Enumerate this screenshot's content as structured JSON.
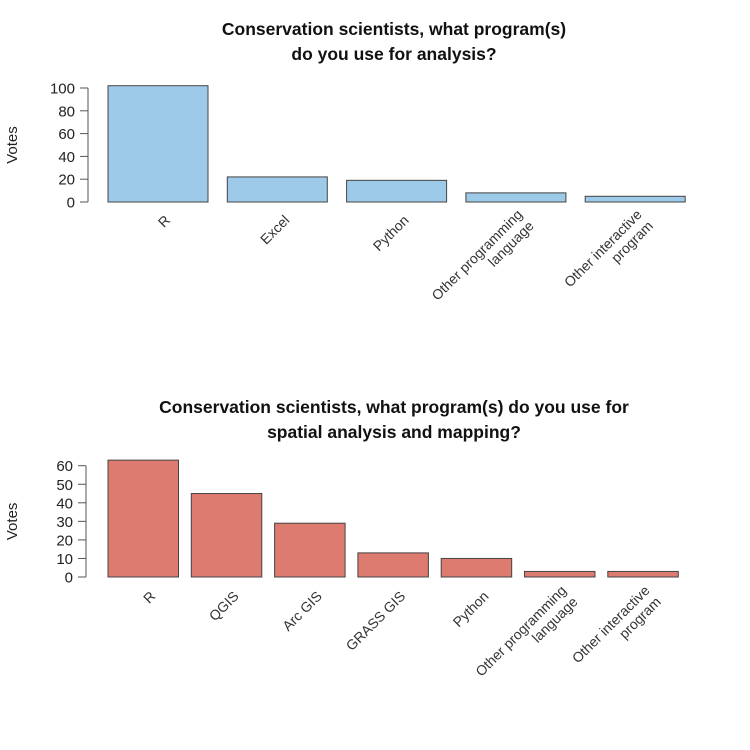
{
  "chart_data": [
    {
      "type": "bar",
      "title": [
        "Conservation scientists, what program(s)",
        "do you use for analysis?"
      ],
      "xlabel": "",
      "ylabel": "Votes",
      "ylim": [
        0,
        100
      ],
      "yticks": [
        0,
        20,
        40,
        60,
        80,
        100
      ],
      "color": "#9ecae9",
      "categories": [
        [
          "R"
        ],
        [
          "Excel"
        ],
        [
          "Python"
        ],
        [
          "Other programming",
          "language"
        ],
        [
          "Other interactive",
          "program"
        ]
      ],
      "category_names": [
        "R",
        "Excel",
        "Python",
        "Other programming language",
        "Other interactive program"
      ],
      "values": [
        102,
        22,
        19,
        8,
        5
      ],
      "grid": false,
      "legend": "none"
    },
    {
      "type": "bar",
      "title": [
        "Conservation scientists, what program(s) do you use for",
        "spatial analysis and mapping?"
      ],
      "xlabel": "",
      "ylabel": "Votes",
      "ylim": [
        0,
        60
      ],
      "yticks": [
        0,
        10,
        20,
        30,
        40,
        50,
        60
      ],
      "color": "#de7b70",
      "categories": [
        [
          "R"
        ],
        [
          "QGIS"
        ],
        [
          "Arc GIS"
        ],
        [
          "GRASS GIS"
        ],
        [
          "Python"
        ],
        [
          "Other programming",
          "language"
        ],
        [
          "Other interactive",
          "program"
        ]
      ],
      "category_names": [
        "R",
        "QGIS",
        "Arc GIS",
        "GRASS GIS",
        "Python",
        "Other programming language",
        "Other interactive program"
      ],
      "values": [
        63,
        45,
        29,
        13,
        10,
        3,
        3
      ],
      "grid": false,
      "legend": "none"
    }
  ]
}
